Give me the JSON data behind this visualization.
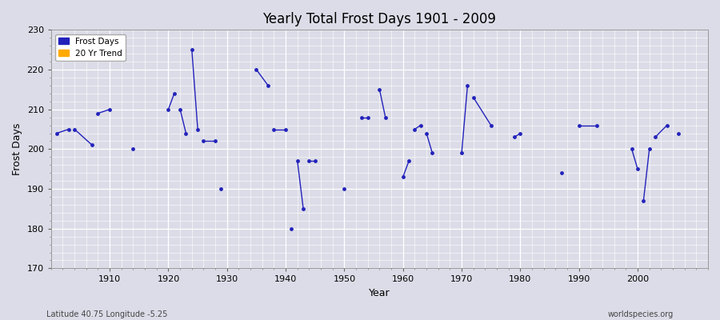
{
  "title": "Yearly Total Frost Days 1901 - 2009",
  "xlabel": "Year",
  "ylabel": "Frost Days",
  "xlim": [
    1900,
    2012
  ],
  "ylim": [
    170,
    230
  ],
  "yticks": [
    170,
    180,
    190,
    200,
    210,
    220,
    230
  ],
  "xticks": [
    1910,
    1920,
    1930,
    1940,
    1950,
    1960,
    1970,
    1980,
    1990,
    2000
  ],
  "bg_color": "#dcdce8",
  "grid_color": "#ffffff",
  "line_color": "#2222bb",
  "trend_color": "#ffaa00",
  "segments": [
    [
      [
        1901,
        204
      ],
      [
        1903,
        205
      ]
    ],
    [
      [
        1904,
        205
      ],
      [
        1907,
        201
      ]
    ],
    [
      [
        1908,
        209
      ],
      [
        1910,
        210
      ]
    ],
    [
      [
        1914,
        200
      ]
    ],
    [
      [
        1920,
        210
      ],
      [
        1921,
        214
      ]
    ],
    [
      [
        1922,
        210
      ],
      [
        1923,
        204
      ]
    ],
    [
      [
        1924,
        225
      ],
      [
        1925,
        205
      ]
    ],
    [
      [
        1926,
        202
      ],
      [
        1928,
        202
      ]
    ],
    [
      [
        1929,
        190
      ]
    ],
    [
      [
        1935,
        220
      ],
      [
        1937,
        216
      ]
    ],
    [
      [
        1938,
        205
      ],
      [
        1940,
        205
      ]
    ],
    [
      [
        1941,
        180
      ]
    ],
    [
      [
        1942,
        197
      ],
      [
        1943,
        185
      ]
    ],
    [
      [
        1944,
        197
      ],
      [
        1945,
        197
      ]
    ],
    [
      [
        1950,
        190
      ]
    ],
    [
      [
        1953,
        208
      ],
      [
        1954,
        208
      ]
    ],
    [
      [
        1956,
        215
      ],
      [
        1957,
        208
      ]
    ],
    [
      [
        1960,
        193
      ],
      [
        1961,
        197
      ]
    ],
    [
      [
        1962,
        205
      ],
      [
        1963,
        206
      ]
    ],
    [
      [
        1964,
        204
      ],
      [
        1965,
        199
      ]
    ],
    [
      [
        1970,
        199
      ],
      [
        1971,
        216
      ]
    ],
    [
      [
        1972,
        213
      ],
      [
        1975,
        206
      ]
    ],
    [
      [
        1979,
        203
      ],
      [
        1980,
        204
      ]
    ],
    [
      [
        1987,
        194
      ]
    ],
    [
      [
        1990,
        206
      ],
      [
        1993,
        206
      ]
    ],
    [
      [
        1999,
        200
      ],
      [
        2000,
        195
      ]
    ],
    [
      [
        2001,
        187
      ],
      [
        2002,
        200
      ]
    ],
    [
      [
        2003,
        203
      ],
      [
        2005,
        206
      ]
    ],
    [
      [
        2007,
        204
      ]
    ]
  ],
  "footnote_left": "Latitude 40.75 Longitude -5.25",
  "footnote_right": "worldspecies.org"
}
